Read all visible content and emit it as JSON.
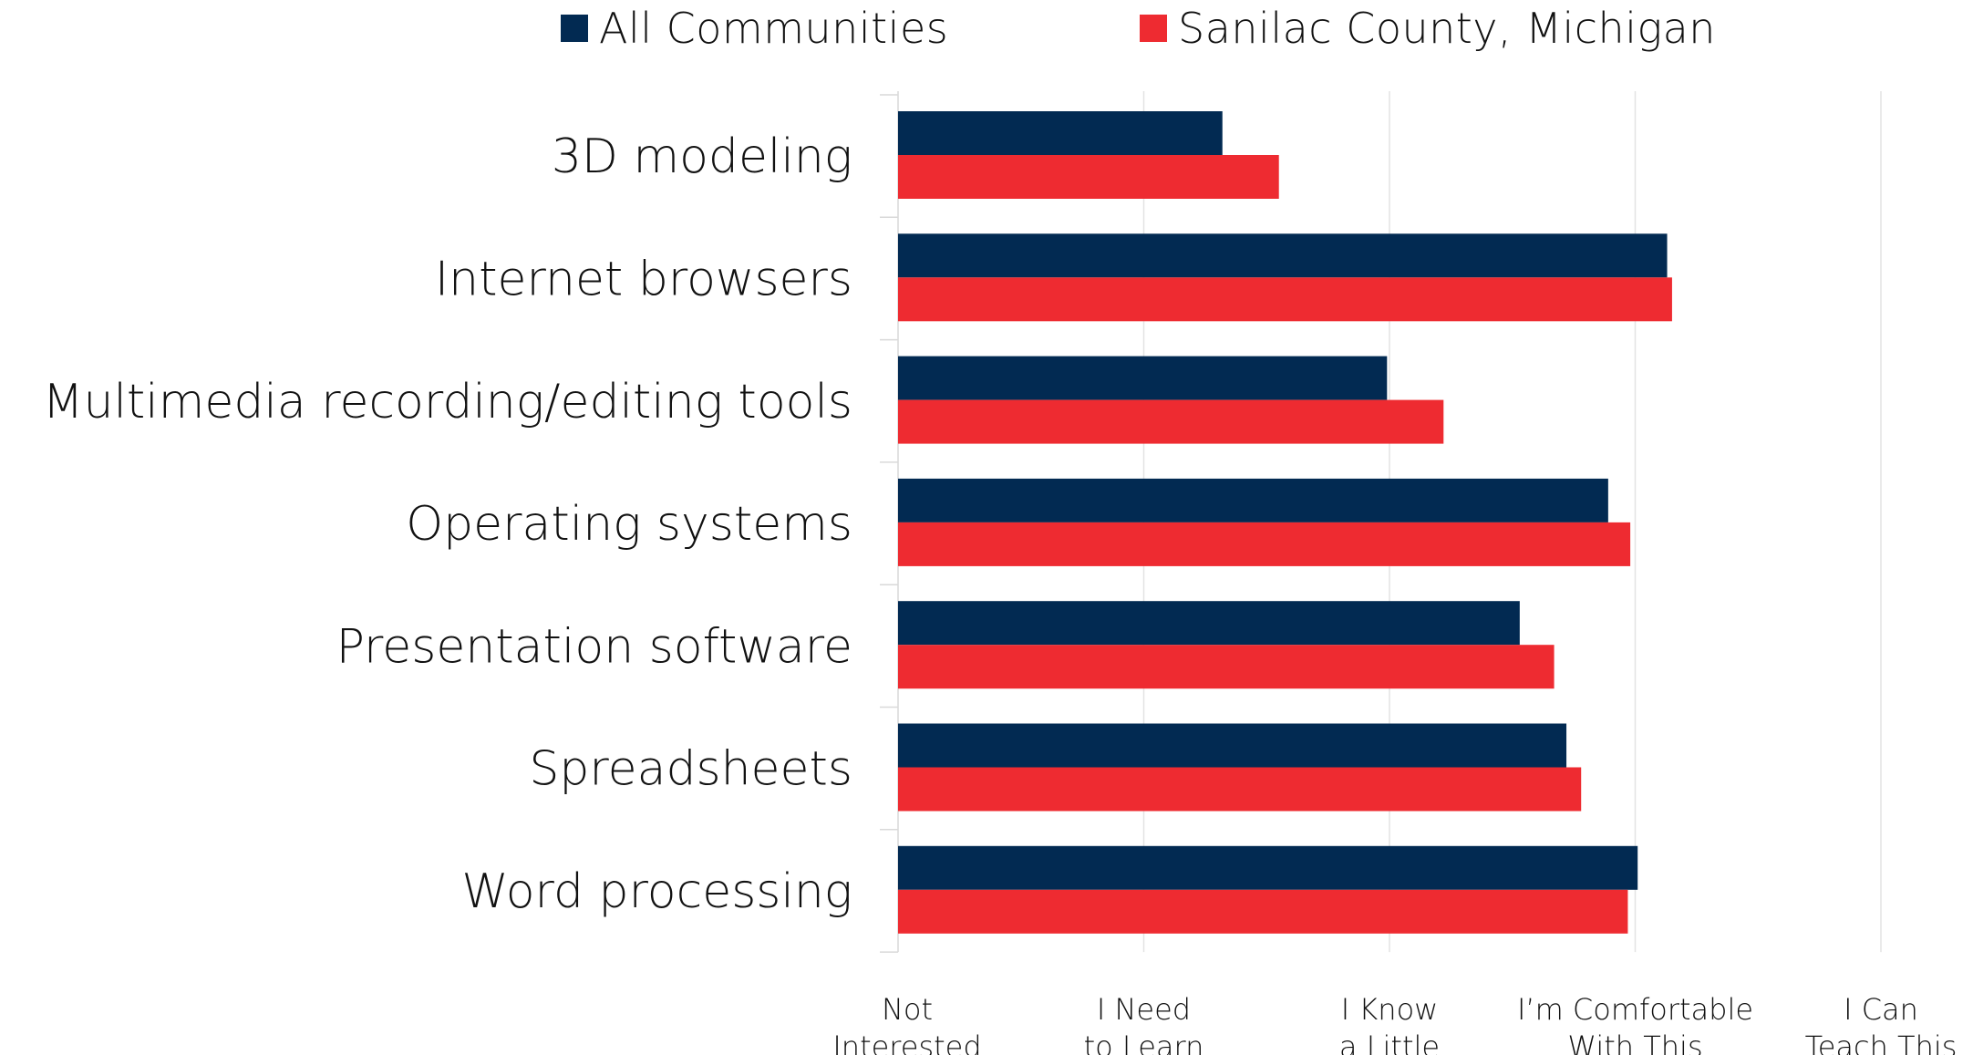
{
  "chart_data": {
    "type": "bar",
    "orientation": "horizontal",
    "categories": [
      "3D modeling",
      "Internet browsers",
      "Multimedia recording/editing tools",
      "Operating systems",
      "Presentation software",
      "Spreadsheets",
      "Word processing"
    ],
    "series": [
      {
        "name": "All Communities",
        "color": "#022a52",
        "values": [
          1.32,
          3.13,
          1.99,
          2.89,
          2.53,
          2.72,
          3.01
        ]
      },
      {
        "name": "Sanilac County, Michigan",
        "color": "#ee2b31",
        "values": [
          1.55,
          3.15,
          2.22,
          2.98,
          2.67,
          2.78,
          2.97
        ]
      }
    ],
    "xlim": [
      0,
      4
    ],
    "x_ticks": [
      {
        "value": 0,
        "lines": [
          "Not",
          "Interested"
        ]
      },
      {
        "value": 1,
        "lines": [
          "I Need",
          "to Learn"
        ]
      },
      {
        "value": 2,
        "lines": [
          "I Know",
          "a Little"
        ]
      },
      {
        "value": 3,
        "lines": [
          "I’m Comfortable",
          "With This"
        ]
      },
      {
        "value": 4,
        "lines": [
          "I Can",
          "Teach This"
        ]
      }
    ],
    "legend_position": "top",
    "grid": true,
    "title": "",
    "xlabel": "",
    "ylabel": ""
  }
}
